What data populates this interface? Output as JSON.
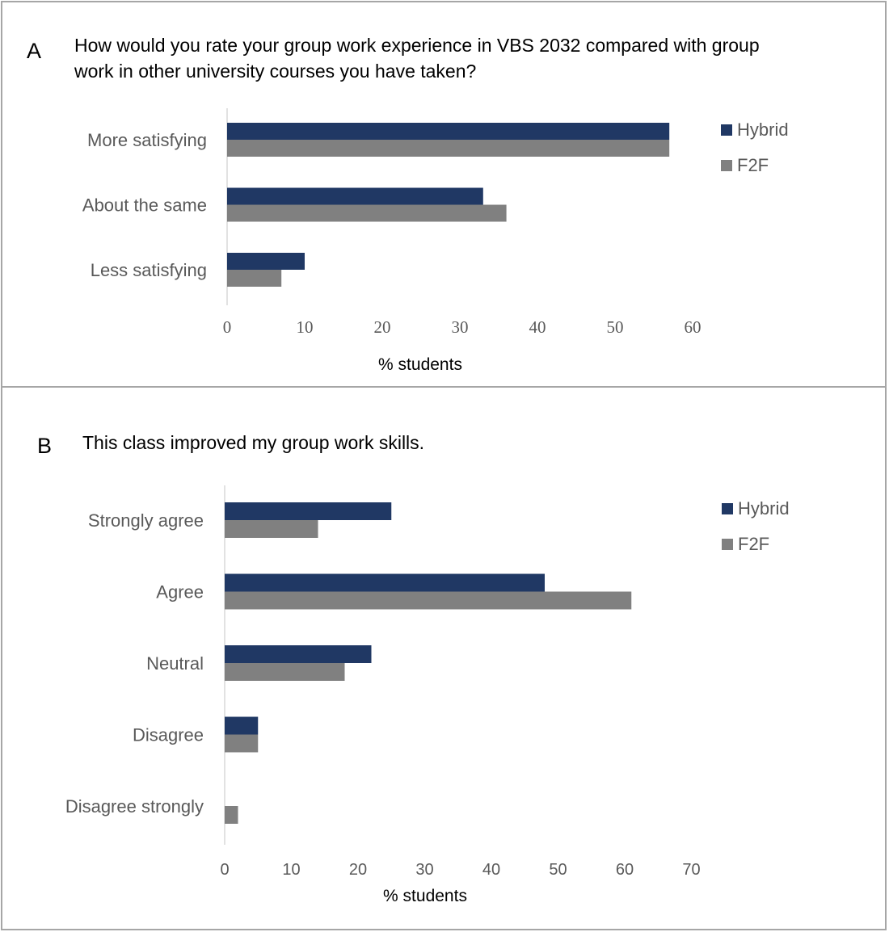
{
  "colors": {
    "hybrid": "#203864",
    "f2f": "#808080",
    "axis": "#d9d9d9",
    "frame": "#a6a6a6"
  },
  "chart_data": [
    {
      "type": "bar",
      "orientation": "horizontal",
      "panel_label": "A",
      "title_lines": [
        "How would you rate your group work experience in VBS 2032 compared with group",
        "work in other university courses you have taken?"
      ],
      "categories": [
        "More satisfying",
        "About the same",
        "Less satisfying"
      ],
      "series": [
        {
          "name": "Hybrid",
          "values": [
            57,
            33,
            10
          ]
        },
        {
          "name": "F2F",
          "values": [
            57,
            36,
            7
          ]
        }
      ],
      "xlabel": "% students",
      "xlim": [
        0,
        60
      ],
      "xticks": [
        "0",
        "10",
        "20",
        "30",
        "40",
        "50",
        "60"
      ],
      "legend": "right",
      "grid": false
    },
    {
      "type": "bar",
      "orientation": "horizontal",
      "panel_label": "B",
      "title_lines": [
        "This class improved my group work skills."
      ],
      "categories": [
        "Strongly agree",
        "Agree",
        "Neutral",
        "Disagree",
        "Disagree strongly"
      ],
      "series": [
        {
          "name": "Hybrid",
          "values": [
            25,
            48,
            22,
            5,
            0
          ]
        },
        {
          "name": "F2F",
          "values": [
            14,
            61,
            18,
            5,
            2
          ]
        }
      ],
      "xlabel": "% students",
      "xlim": [
        0,
        70
      ],
      "xticks": [
        "0",
        "10",
        "20",
        "30",
        "40",
        "50",
        "60",
        "70"
      ],
      "legend": "right",
      "grid": false
    }
  ]
}
